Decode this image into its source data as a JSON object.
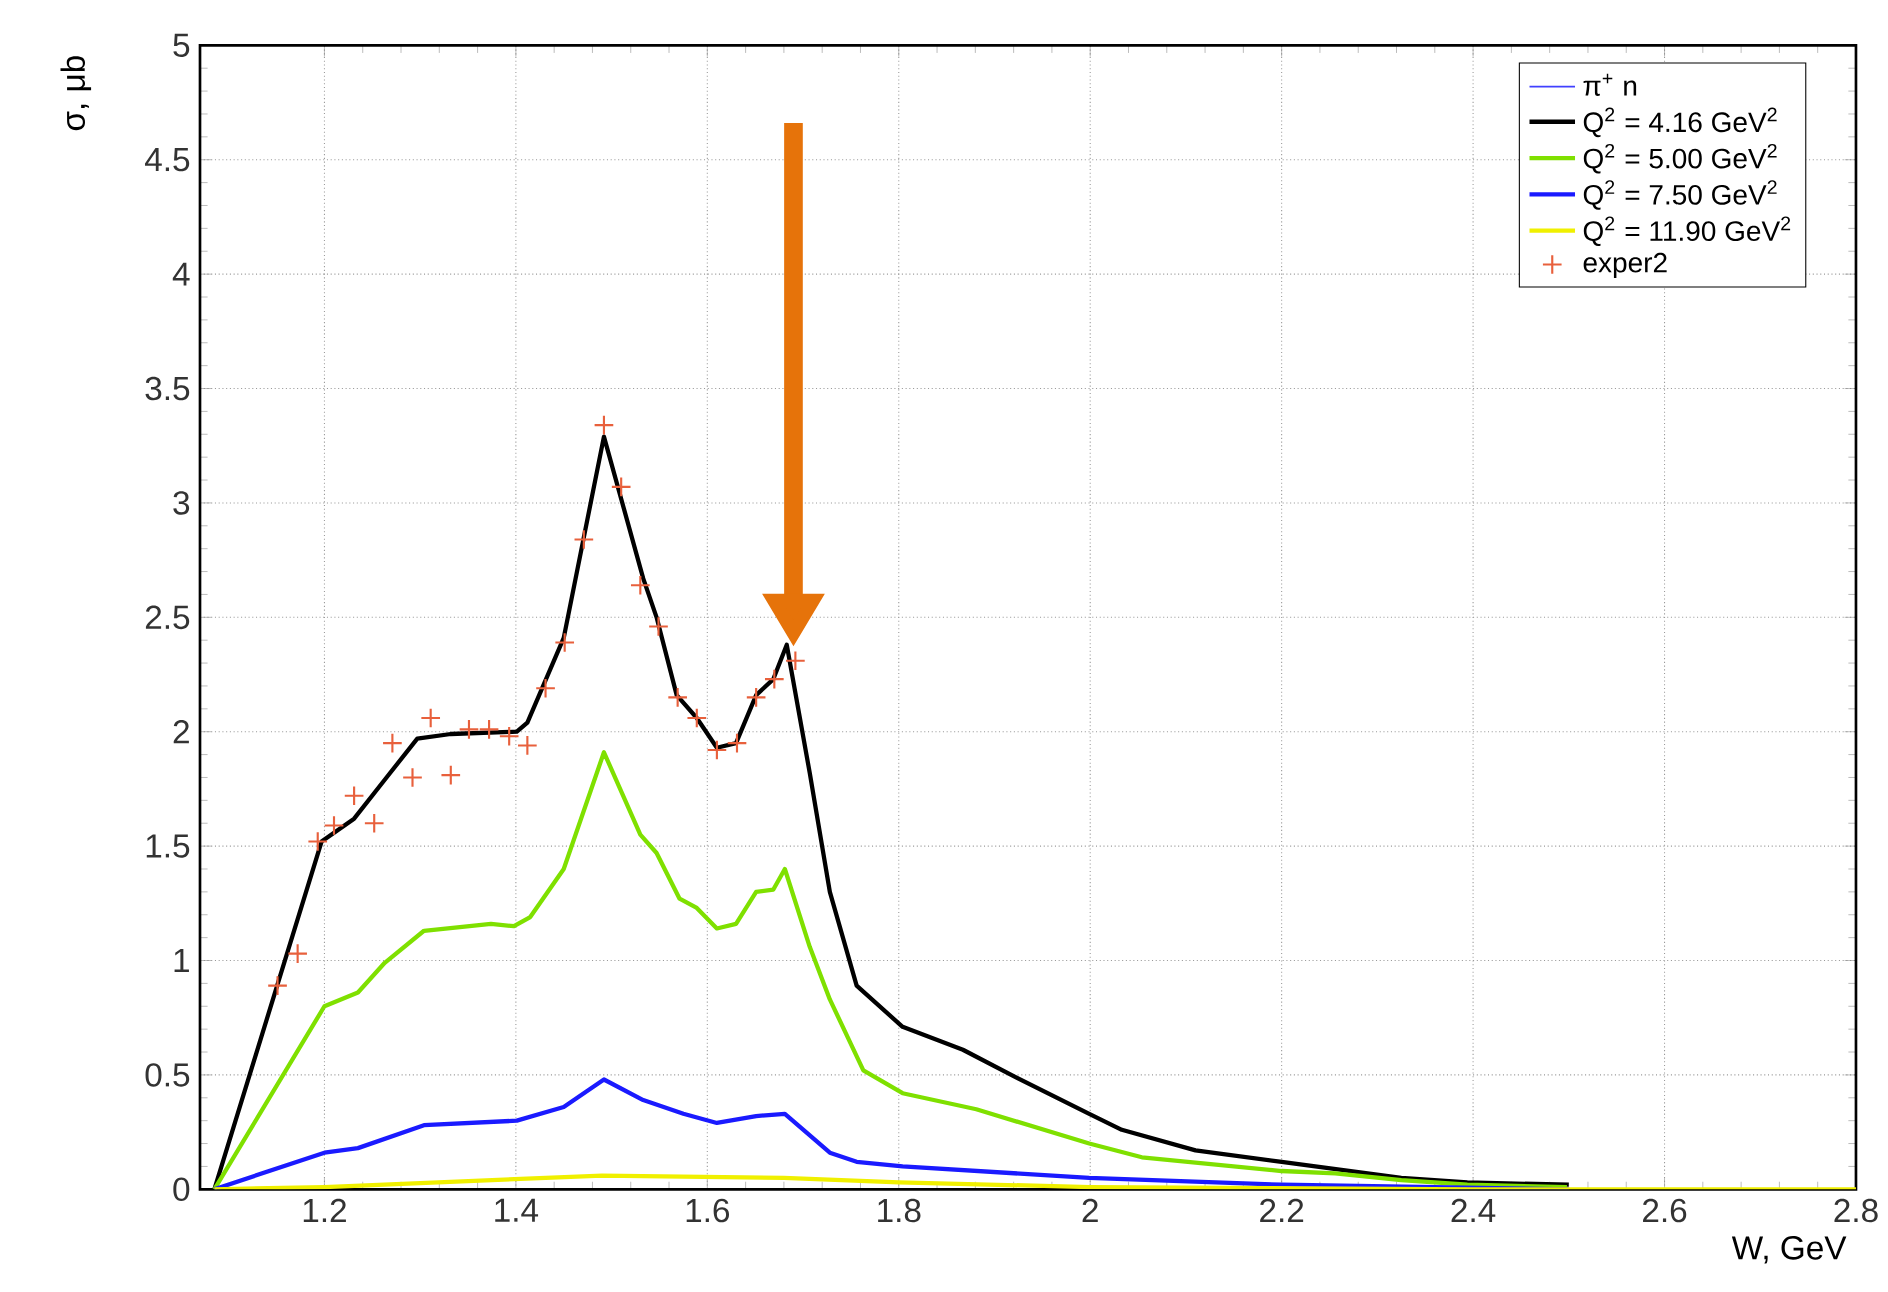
{
  "chart_data": {
    "type": "line",
    "xlabel": "W, GeV",
    "ylabel": "σ, μb",
    "xlim": [
      1.07,
      2.8
    ],
    "ylim": [
      0,
      5
    ],
    "xticks": [
      1.2,
      1.4,
      1.6,
      1.8,
      2,
      2.2,
      2.4,
      2.6,
      2.8
    ],
    "yticks": [
      0,
      0.5,
      1,
      1.5,
      2,
      2.5,
      3,
      3.5,
      4,
      4.5,
      5
    ],
    "grid": true,
    "legend": "top right",
    "line_style": "solid",
    "marker": "none",
    "series": [
      {
        "name": "π$^{+}$ n",
        "color": "#4040ff"
      },
      {
        "name": "Q$^{2}$ = 4.16 GeV$^{2}$",
        "color": "#000000",
        "x": [
          1.085,
          1.197,
          1.231,
          1.263,
          1.297,
          1.332,
          1.401,
          1.412,
          1.45,
          1.492,
          1.533,
          1.547,
          1.568,
          1.589,
          1.61,
          1.63,
          1.651,
          1.669,
          1.683,
          1.707,
          1.728,
          1.756,
          1.804,
          1.867,
          1.922,
          1.999,
          2.033,
          2.11,
          2.2,
          2.325,
          2.394,
          2.5
        ],
        "values": [
          0,
          1.52,
          1.62,
          1.79,
          1.97,
          1.99,
          2.0,
          2.04,
          2.41,
          3.29,
          2.67,
          2.5,
          2.16,
          2.06,
          1.93,
          1.95,
          2.16,
          2.23,
          2.38,
          1.82,
          1.3,
          0.89,
          0.71,
          0.61,
          0.49,
          0.33,
          0.26,
          0.17,
          0.12,
          0.05,
          0.03,
          0.02
        ]
      },
      {
        "name": "Q$^{2}$ = 5.00 GeV$^{2}$",
        "color": "#7fe000",
        "x": [
          1.085,
          1.2,
          1.235,
          1.263,
          1.304,
          1.374,
          1.398,
          1.415,
          1.45,
          1.492,
          1.53,
          1.547,
          1.571,
          1.589,
          1.61,
          1.63,
          1.651,
          1.669,
          1.681,
          1.707,
          1.728,
          1.763,
          1.804,
          1.881,
          1.999,
          2.054,
          2.2,
          2.256,
          2.325,
          2.394,
          2.498
        ],
        "values": [
          0,
          0.8,
          0.86,
          0.99,
          1.13,
          1.16,
          1.15,
          1.19,
          1.4,
          1.91,
          1.55,
          1.47,
          1.27,
          1.23,
          1.14,
          1.16,
          1.3,
          1.31,
          1.4,
          1.06,
          0.83,
          0.52,
          0.42,
          0.35,
          0.2,
          0.14,
          0.08,
          0.07,
          0.04,
          0.02,
          0.01
        ]
      },
      {
        "name": "Q$^{2}$ = 7.50 GeV$^{2}$",
        "color": "#1a1aff",
        "x": [
          1.085,
          1.2,
          1.235,
          1.304,
          1.401,
          1.45,
          1.492,
          1.533,
          1.575,
          1.61,
          1.651,
          1.681,
          1.728,
          1.756,
          1.804,
          1.999,
          2.2,
          2.5
        ],
        "values": [
          0,
          0.16,
          0.18,
          0.28,
          0.3,
          0.36,
          0.48,
          0.39,
          0.33,
          0.29,
          0.32,
          0.33,
          0.16,
          0.12,
          0.1,
          0.05,
          0.02,
          0
        ]
      },
      {
        "name": "Q$^{2}$ = 11.90 GeV$^{2}$",
        "color": "#f0f000",
        "x": [
          1.085,
          1.2,
          1.49,
          1.68,
          1.8,
          2.0,
          2.4,
          2.8
        ],
        "values": [
          0,
          0.01,
          0.06,
          0.05,
          0.03,
          0.01,
          0,
          0
        ]
      },
      {
        "name": "exper2",
        "type": "scatter",
        "marker": "cross",
        "color": "#e8603c",
        "x": [
          1.151,
          1.172,
          1.193,
          1.21,
          1.231,
          1.252,
          1.271,
          1.292,
          1.311,
          1.332,
          1.351,
          1.372,
          1.393,
          1.412,
          1.431,
          1.451,
          1.471,
          1.492,
          1.51,
          1.53,
          1.549,
          1.569,
          1.589,
          1.61,
          1.631,
          1.651,
          1.67,
          1.692
        ],
        "values": [
          0.89,
          1.03,
          1.52,
          1.59,
          1.72,
          1.6,
          1.95,
          1.8,
          2.06,
          1.81,
          2.01,
          2.01,
          1.98,
          1.94,
          2.19,
          2.39,
          2.84,
          3.34,
          3.07,
          2.64,
          2.46,
          2.15,
          2.06,
          1.92,
          1.95,
          2.15,
          2.23,
          2.31
        ]
      }
    ]
  }
}
